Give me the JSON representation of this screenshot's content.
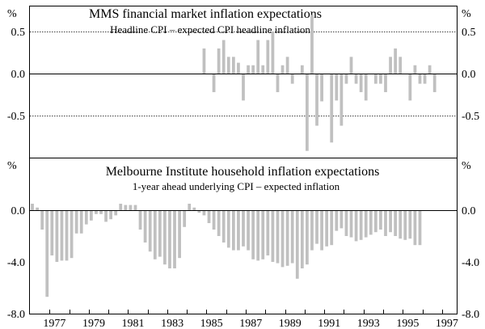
{
  "chart_data": [
    {
      "type": "bar",
      "title": "MMS financial market inflation expectations",
      "subtitle": "Headline CPI – expected CPI headline inflation",
      "unit_label": "%",
      "ylim": [
        -1.0,
        0.8
      ],
      "yticks": [
        {
          "value": 0.5,
          "label": "0.5"
        },
        {
          "value": 0.0,
          "label": "0.0"
        },
        {
          "value": -0.5,
          "label": "-0.5"
        }
      ],
      "grid": "dotted at 0.5 and -0.5",
      "bar_color": "#c0c0c0",
      "x_start": 1976.0,
      "x_step": 0.25,
      "values": [
        null,
        null,
        null,
        null,
        null,
        null,
        null,
        null,
        null,
        null,
        null,
        null,
        null,
        null,
        null,
        null,
        null,
        null,
        null,
        null,
        null,
        null,
        null,
        null,
        null,
        null,
        null,
        null,
        null,
        null,
        null,
        null,
        null,
        null,
        null,
        0.3,
        0,
        -0.22,
        0.3,
        0.4,
        0.2,
        0.2,
        0.13,
        -0.32,
        0.1,
        0.1,
        0.4,
        0.1,
        0.4,
        0.5,
        -0.22,
        0.1,
        0.2,
        -0.12,
        0,
        0.1,
        -0.92,
        0.7,
        -0.62,
        -0.33,
        0,
        -0.82,
        -0.32,
        -0.62,
        -0.12,
        0.2,
        -0.12,
        -0.22,
        -0.32,
        0,
        -0.12,
        -0.12,
        -0.22,
        0.2,
        0.3,
        0.2,
        0,
        -0.32,
        0.1,
        -0.12,
        -0.12,
        0.1,
        -0.22
      ]
    },
    {
      "type": "bar",
      "title": "Melbourne Institute household inflation expectations",
      "subtitle": "1-year ahead underlying CPI – expected inflation",
      "unit_label": "%",
      "ylim": [
        -8.0,
        4.0
      ],
      "yticks": [
        {
          "value": 0.0,
          "label": "0.0"
        },
        {
          "value": -4.0,
          "label": "-4.0"
        },
        {
          "value": -8.0,
          "label": "-8.0"
        }
      ],
      "grid": "none",
      "bar_color": "#c0c0c0",
      "x_start": 1976.0,
      "x_step": 0.25,
      "xticks": [
        "1977",
        "1979",
        "1981",
        "1983",
        "1985",
        "1987",
        "1989",
        "1991",
        "1993",
        "1995",
        "1997"
      ],
      "xtick_years": [
        1977,
        1979,
        1981,
        1983,
        1985,
        1987,
        1989,
        1991,
        1993,
        1995,
        1997
      ],
      "values": [
        0.5,
        0.2,
        -1.5,
        -6.7,
        -3.5,
        -4,
        -3.9,
        -3.9,
        -3.7,
        -1.8,
        -1.8,
        -1.1,
        -0.8,
        -0.3,
        -0.3,
        -0.9,
        -0.7,
        -0.4,
        0.5,
        0.4,
        0.4,
        0.4,
        -1.5,
        -2.5,
        -3.2,
        -3.8,
        -3.6,
        -4.2,
        -4.5,
        -4.5,
        -3.7,
        -1.3,
        0.5,
        0.2,
        -0.2,
        -0.4,
        -1,
        -1.5,
        -2,
        -2.5,
        -2.9,
        -3.1,
        -3.1,
        -2.8,
        -3.1,
        -3.8,
        -3.9,
        -3.8,
        -3.5,
        -4,
        -4.1,
        -4.4,
        -4.3,
        -4.1,
        -5.3,
        -4.5,
        -4.2,
        -3.1,
        -2.6,
        -3.1,
        -2.8,
        -2.7,
        -1.6,
        -1.4,
        -2,
        -2.1,
        -2.4,
        -2.3,
        -2.1,
        -1.9,
        -1.7,
        -1.5,
        -2,
        -1.7,
        -2,
        -2.2,
        -2.3,
        -2.2,
        -2.7,
        -2.7
      ]
    }
  ]
}
